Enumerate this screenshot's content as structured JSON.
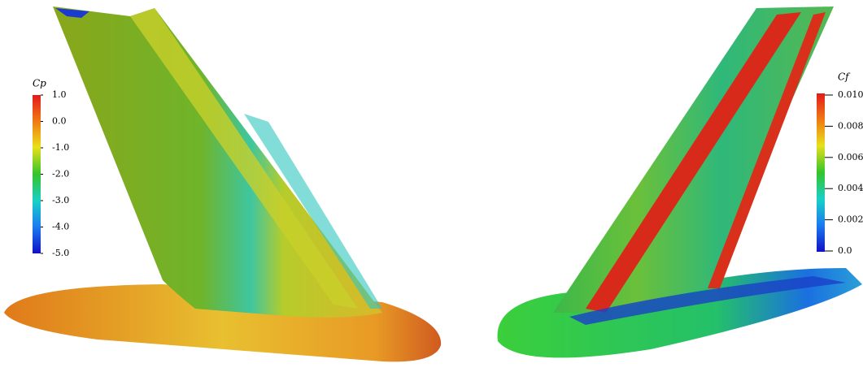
{
  "left_colorbar": {
    "title": "Cp",
    "labels": [
      "1.0",
      "0.0",
      "-1.0",
      "-2.0",
      "-3.0",
      "-4.0",
      "-5.0"
    ]
  },
  "right_colorbar": {
    "title": "Cf",
    "labels": [
      "0.010",
      "0.008",
      "0.006",
      "0.004",
      "0.002",
      "0.0"
    ]
  }
}
